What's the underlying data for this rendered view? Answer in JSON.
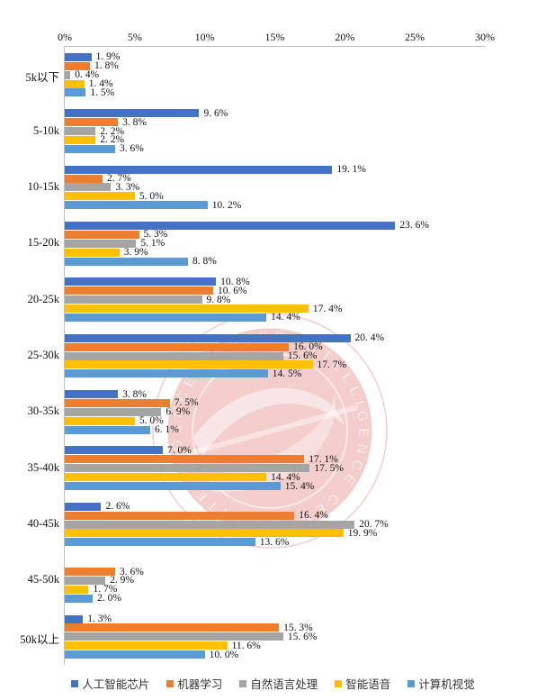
{
  "chart_data": {
    "type": "bar",
    "orientation": "horizontal",
    "title": "",
    "xlabel": "",
    "ylabel": "",
    "xlim": [
      0,
      30
    ],
    "x_tick_labels": [
      "0%",
      "5%",
      "10%",
      "15%",
      "20%",
      "25%",
      "30%"
    ],
    "x_tick_values": [
      0,
      5,
      10,
      15,
      20,
      25,
      30
    ],
    "grid": false,
    "legend_position": "bottom",
    "categories": [
      "5k以下",
      "5-10k",
      "10-15k",
      "15-20k",
      "20-25k",
      "25-30k",
      "30-35k",
      "35-40k",
      "40-45k",
      "45-50k",
      "50k以上"
    ],
    "series": [
      {
        "name": "人工智能芯片",
        "color": "#4472C4",
        "values": [
          1.9,
          9.6,
          19.1,
          23.6,
          10.8,
          20.4,
          3.8,
          7.0,
          2.6,
          null,
          1.3
        ],
        "labels": [
          "1. 9%",
          "9. 6%",
          "19. 1%",
          "23. 6%",
          "10. 8%",
          "20. 4%",
          "3. 8%",
          "7. 0%",
          "2. 6%",
          "",
          "1. 3%"
        ]
      },
      {
        "name": "机器学习",
        "color": "#ED7D31",
        "values": [
          1.8,
          3.8,
          2.7,
          5.3,
          10.6,
          16.0,
          7.5,
          17.1,
          16.4,
          3.6,
          15.3
        ],
        "labels": [
          "1. 8%",
          "3. 8%",
          "2. 7%",
          "5. 3%",
          "10. 6%",
          "16. 0%",
          "7. 5%",
          "17. 1%",
          "16. 4%",
          "3. 6%",
          "15. 3%"
        ]
      },
      {
        "name": "自然语言处理",
        "color": "#A5A5A5",
        "values": [
          0.4,
          2.2,
          3.3,
          5.1,
          9.8,
          15.6,
          6.9,
          17.5,
          20.7,
          2.9,
          15.6
        ],
        "labels": [
          "0. 4%",
          "2. 2%",
          "3. 3%",
          "5. 1%",
          "9. 8%",
          "15. 6%",
          "6. 9%",
          "17. 5%",
          "20. 7%",
          "2. 9%",
          "15. 6%"
        ]
      },
      {
        "name": "智能语音",
        "color": "#FFC000",
        "values": [
          1.4,
          2.2,
          5.0,
          3.9,
          17.4,
          17.7,
          5.0,
          14.4,
          19.9,
          1.7,
          11.6
        ],
        "labels": [
          "1. 4%",
          "2. 2%",
          "5. 0%",
          "3. 9%",
          "17. 4%",
          "17. 7%",
          "5. 0%",
          "14. 4%",
          "19. 9%",
          "1. 7%",
          "11. 6%"
        ]
      },
      {
        "name": "计算机视觉",
        "color": "#5B9BD5",
        "values": [
          1.5,
          3.6,
          10.2,
          8.8,
          14.4,
          14.5,
          6.1,
          15.4,
          13.6,
          2.0,
          10.0
        ],
        "labels": [
          "1. 5%",
          "3. 6%",
          "10. 2%",
          "8. 8%",
          "14. 4%",
          "14. 5%",
          "6. 1%",
          "15. 4%",
          "13. 6%",
          "2. 0%",
          "10. 0%"
        ]
      }
    ]
  },
  "watermark": {
    "ring_text": "INTELLIGENCE CENTER",
    "color": "#DD5B5B"
  },
  "colors": {
    "axis_line": "#BFBFBF",
    "label_text": "#111111"
  }
}
